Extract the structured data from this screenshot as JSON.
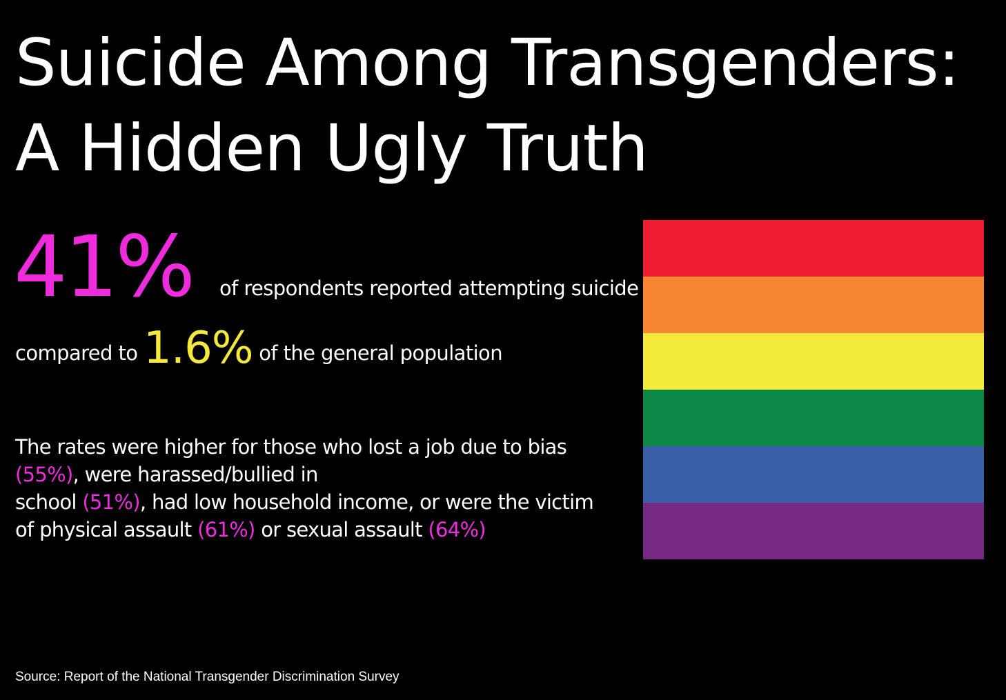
{
  "title": {
    "line1": "Suicide Among Transgenders:",
    "line2": "A Hidden Ugly Truth"
  },
  "stat": {
    "main_value": "41%",
    "main_text": "of respondents reported attempting suicide",
    "compare_prefix": "compared to",
    "compare_value": "1.6%",
    "compare_suffix": "of the general population"
  },
  "details": {
    "part1": "The rates were higher for those who lost a job due to bias",
    "job_loss_pct": "(55%)",
    "part2": ", were harassed/bullied in",
    "part3": "school",
    "school_pct": "(51%)",
    "part4": ", had low household income, or were the victim",
    "part5": "of physical assault",
    "physical_pct": "(61%)",
    "part6": "or sexual assault",
    "sexual_pct": "(64%)"
  },
  "source": "Source: Report of the National Transgender Discrimination Survey",
  "colors": {
    "background": "#000000",
    "text": "#ffffff",
    "highlight_magenta": "#ee2cde",
    "highlight_yellow": "#f5e83b",
    "flag_stripes": [
      "#ed1c33",
      "#f48634",
      "#f5eb3b",
      "#0d8746",
      "#3a5fa8",
      "#772a82"
    ]
  }
}
